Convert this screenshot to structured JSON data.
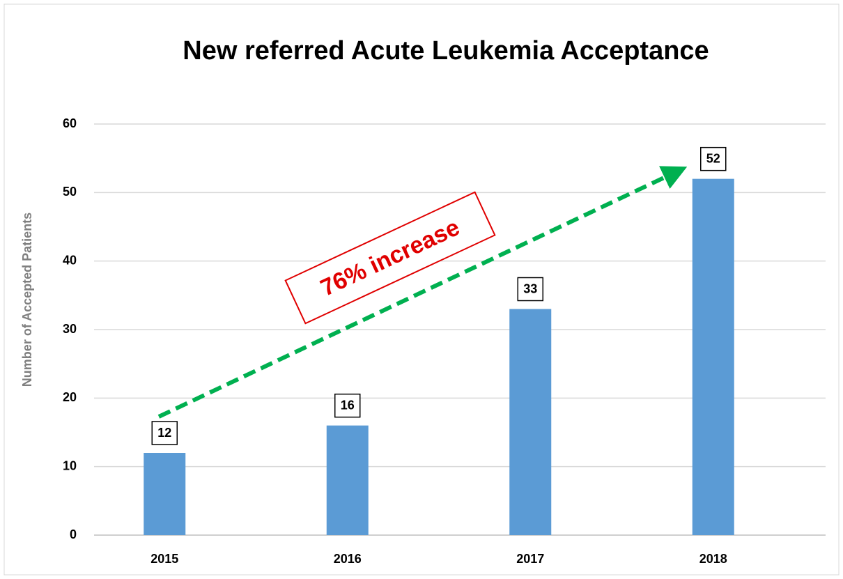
{
  "chart_data": {
    "type": "bar",
    "title": "New referred Acute Leukemia Acceptance",
    "y_label": "Number of Accepted  Patients",
    "annotation": "76% increase",
    "categories": [
      "2015",
      "2016",
      "2017",
      "2018"
    ],
    "values": [
      12,
      16,
      33,
      52
    ],
    "color": "#5b9bd5",
    "ylim": [
      0,
      60
    ],
    "yticks": [
      0,
      10,
      20,
      30,
      40,
      50,
      60
    ],
    "grid": true
  }
}
